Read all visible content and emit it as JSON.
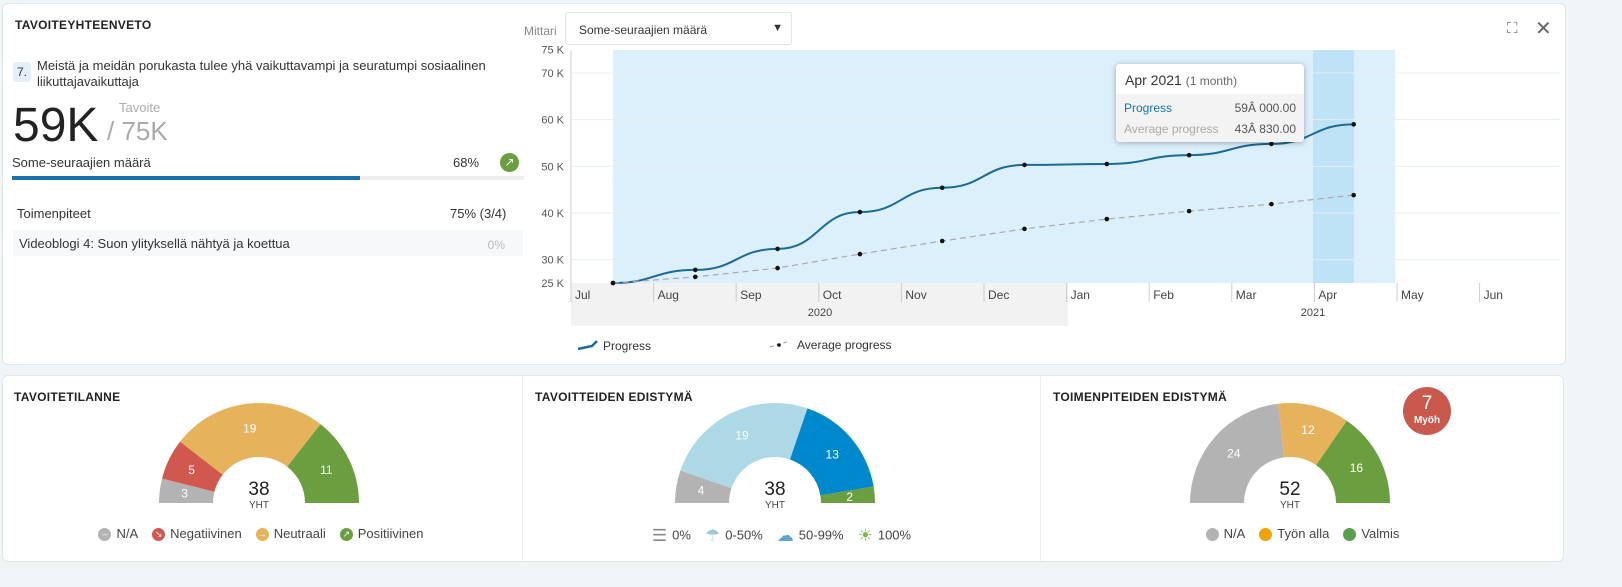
{
  "summary": {
    "title": "TAVOITEYHTEENVETO",
    "goal_number": "7.",
    "goal_text": "Meistä ja meidän porukasta tulee yhä vaikuttavampi ja seuratumpi sosiaalinen liikuttajavaikuttaja",
    "value": "59K",
    "target_label": "Tavoite",
    "target": "/ 75K",
    "metric_name": "Some-seuraajien määrä",
    "percent": "68%",
    "progress_fraction": 0.68,
    "trend_icon": "arrow-up-right-icon",
    "actions_label": "Toimenpiteet",
    "actions_value": "75% (3/4)",
    "action_item": "Videoblogi 4: Suon ylityksellä nähtyä ja koettua",
    "action_item_value": "0%"
  },
  "metric_select": {
    "label": "Mittari",
    "value": "Some-seuraajien määrä"
  },
  "colors": {
    "accent": "#1a73a8",
    "green": "#6a9e3f",
    "red": "#d0584e",
    "yellow": "#e6b35c",
    "gray": "#b3b3b3",
    "lightblue": "#add8e6",
    "blue": "#0088cc"
  },
  "chart_data": {
    "type": "line",
    "ylim": [
      25000,
      75000
    ],
    "y_ticks": [
      "25 K",
      "30 K",
      "40 K",
      "50 K",
      "60 K",
      "70 K",
      "75 K"
    ],
    "x_ticks": [
      "Jul",
      "Aug",
      "Sep",
      "Oct",
      "Nov",
      "Dec",
      "Jan",
      "Feb",
      "Mar",
      "Apr",
      "May",
      "Jun"
    ],
    "x_years": [
      "2020",
      "2021"
    ],
    "x": [
      "Jul 2020",
      "Aug 2020",
      "Sep 2020",
      "Oct 2020",
      "Nov 2020",
      "Dec 2020",
      "Jan 2021",
      "Feb 2021",
      "Mar 2021",
      "Apr 2021"
    ],
    "series": [
      {
        "name": "Progress",
        "values": [
          25000,
          27800,
          32300,
          40200,
          45400,
          50300,
          50500,
          52400,
          54800,
          59000
        ]
      },
      {
        "name": "Average progress",
        "values": [
          25000,
          26300,
          28200,
          31200,
          34000,
          36600,
          38700,
          40400,
          41900,
          43830
        ]
      }
    ],
    "tooltip": {
      "title": "Apr 2021",
      "sub": "(1 month)",
      "rows": [
        {
          "label": "Progress",
          "value": "59Â 000.00"
        },
        {
          "label": "Average progress",
          "value": "43Â 830.00"
        }
      ]
    }
  },
  "gauges": [
    {
      "title": "TAVOITETILANNE",
      "total": "38",
      "total_label": "YHT",
      "slices": [
        {
          "value": 3,
          "color": "#b3b3b3"
        },
        {
          "value": 5,
          "color": "#d0584e"
        },
        {
          "value": 19,
          "color": "#e6b35c"
        },
        {
          "value": 11,
          "color": "#6a9e3f"
        }
      ],
      "legend": [
        {
          "label": "N/A",
          "color": "#b3b3b3",
          "glyph": "–"
        },
        {
          "label": "Negatiivinen",
          "color": "#d0584e",
          "glyph": "↘"
        },
        {
          "label": "Neutraali",
          "color": "#e6b35c",
          "glyph": "→"
        },
        {
          "label": "Positiivinen",
          "color": "#6a9e3f",
          "glyph": "↗"
        }
      ]
    },
    {
      "title": "TAVOITTEIDEN EDISTYMÄ",
      "total": "38",
      "total_label": "YHT",
      "slices": [
        {
          "value": 4,
          "color": "#b3b3b3"
        },
        {
          "value": 19,
          "color": "#add8e6"
        },
        {
          "value": 13,
          "color": "#0088cc"
        },
        {
          "value": 2,
          "color": "#6a9e3f"
        }
      ],
      "legend": [
        {
          "label": "0%",
          "color": "#888",
          "glyph": "☰",
          "icon": "fog-icon"
        },
        {
          "label": "0-50%",
          "color": "#9cc8dc",
          "glyph": "☂",
          "icon": "rain-cloud-icon"
        },
        {
          "label": "50-99%",
          "color": "#5aa6d0",
          "glyph": "☁",
          "icon": "cloud-sun-icon"
        },
        {
          "label": "100%",
          "color": "#7ab648",
          "glyph": "☀",
          "icon": "sun-icon"
        }
      ]
    },
    {
      "title": "TOIMENPITEIDEN EDISTYMÄ",
      "total": "52",
      "total_label": "YHT",
      "late_count": "7",
      "late_label": "Myöh",
      "slices": [
        {
          "value": 24,
          "color": "#b3b3b3"
        },
        {
          "value": 12,
          "color": "#e6b35c"
        },
        {
          "value": 16,
          "color": "#6a9e3f"
        }
      ],
      "legend": [
        {
          "label": "N/A",
          "color": "#b3b3b3",
          "glyph": ""
        },
        {
          "label": "Työn alla",
          "color": "#f0a30a",
          "glyph": ""
        },
        {
          "label": "Valmis",
          "color": "#5a9e50",
          "glyph": ""
        }
      ]
    }
  ]
}
